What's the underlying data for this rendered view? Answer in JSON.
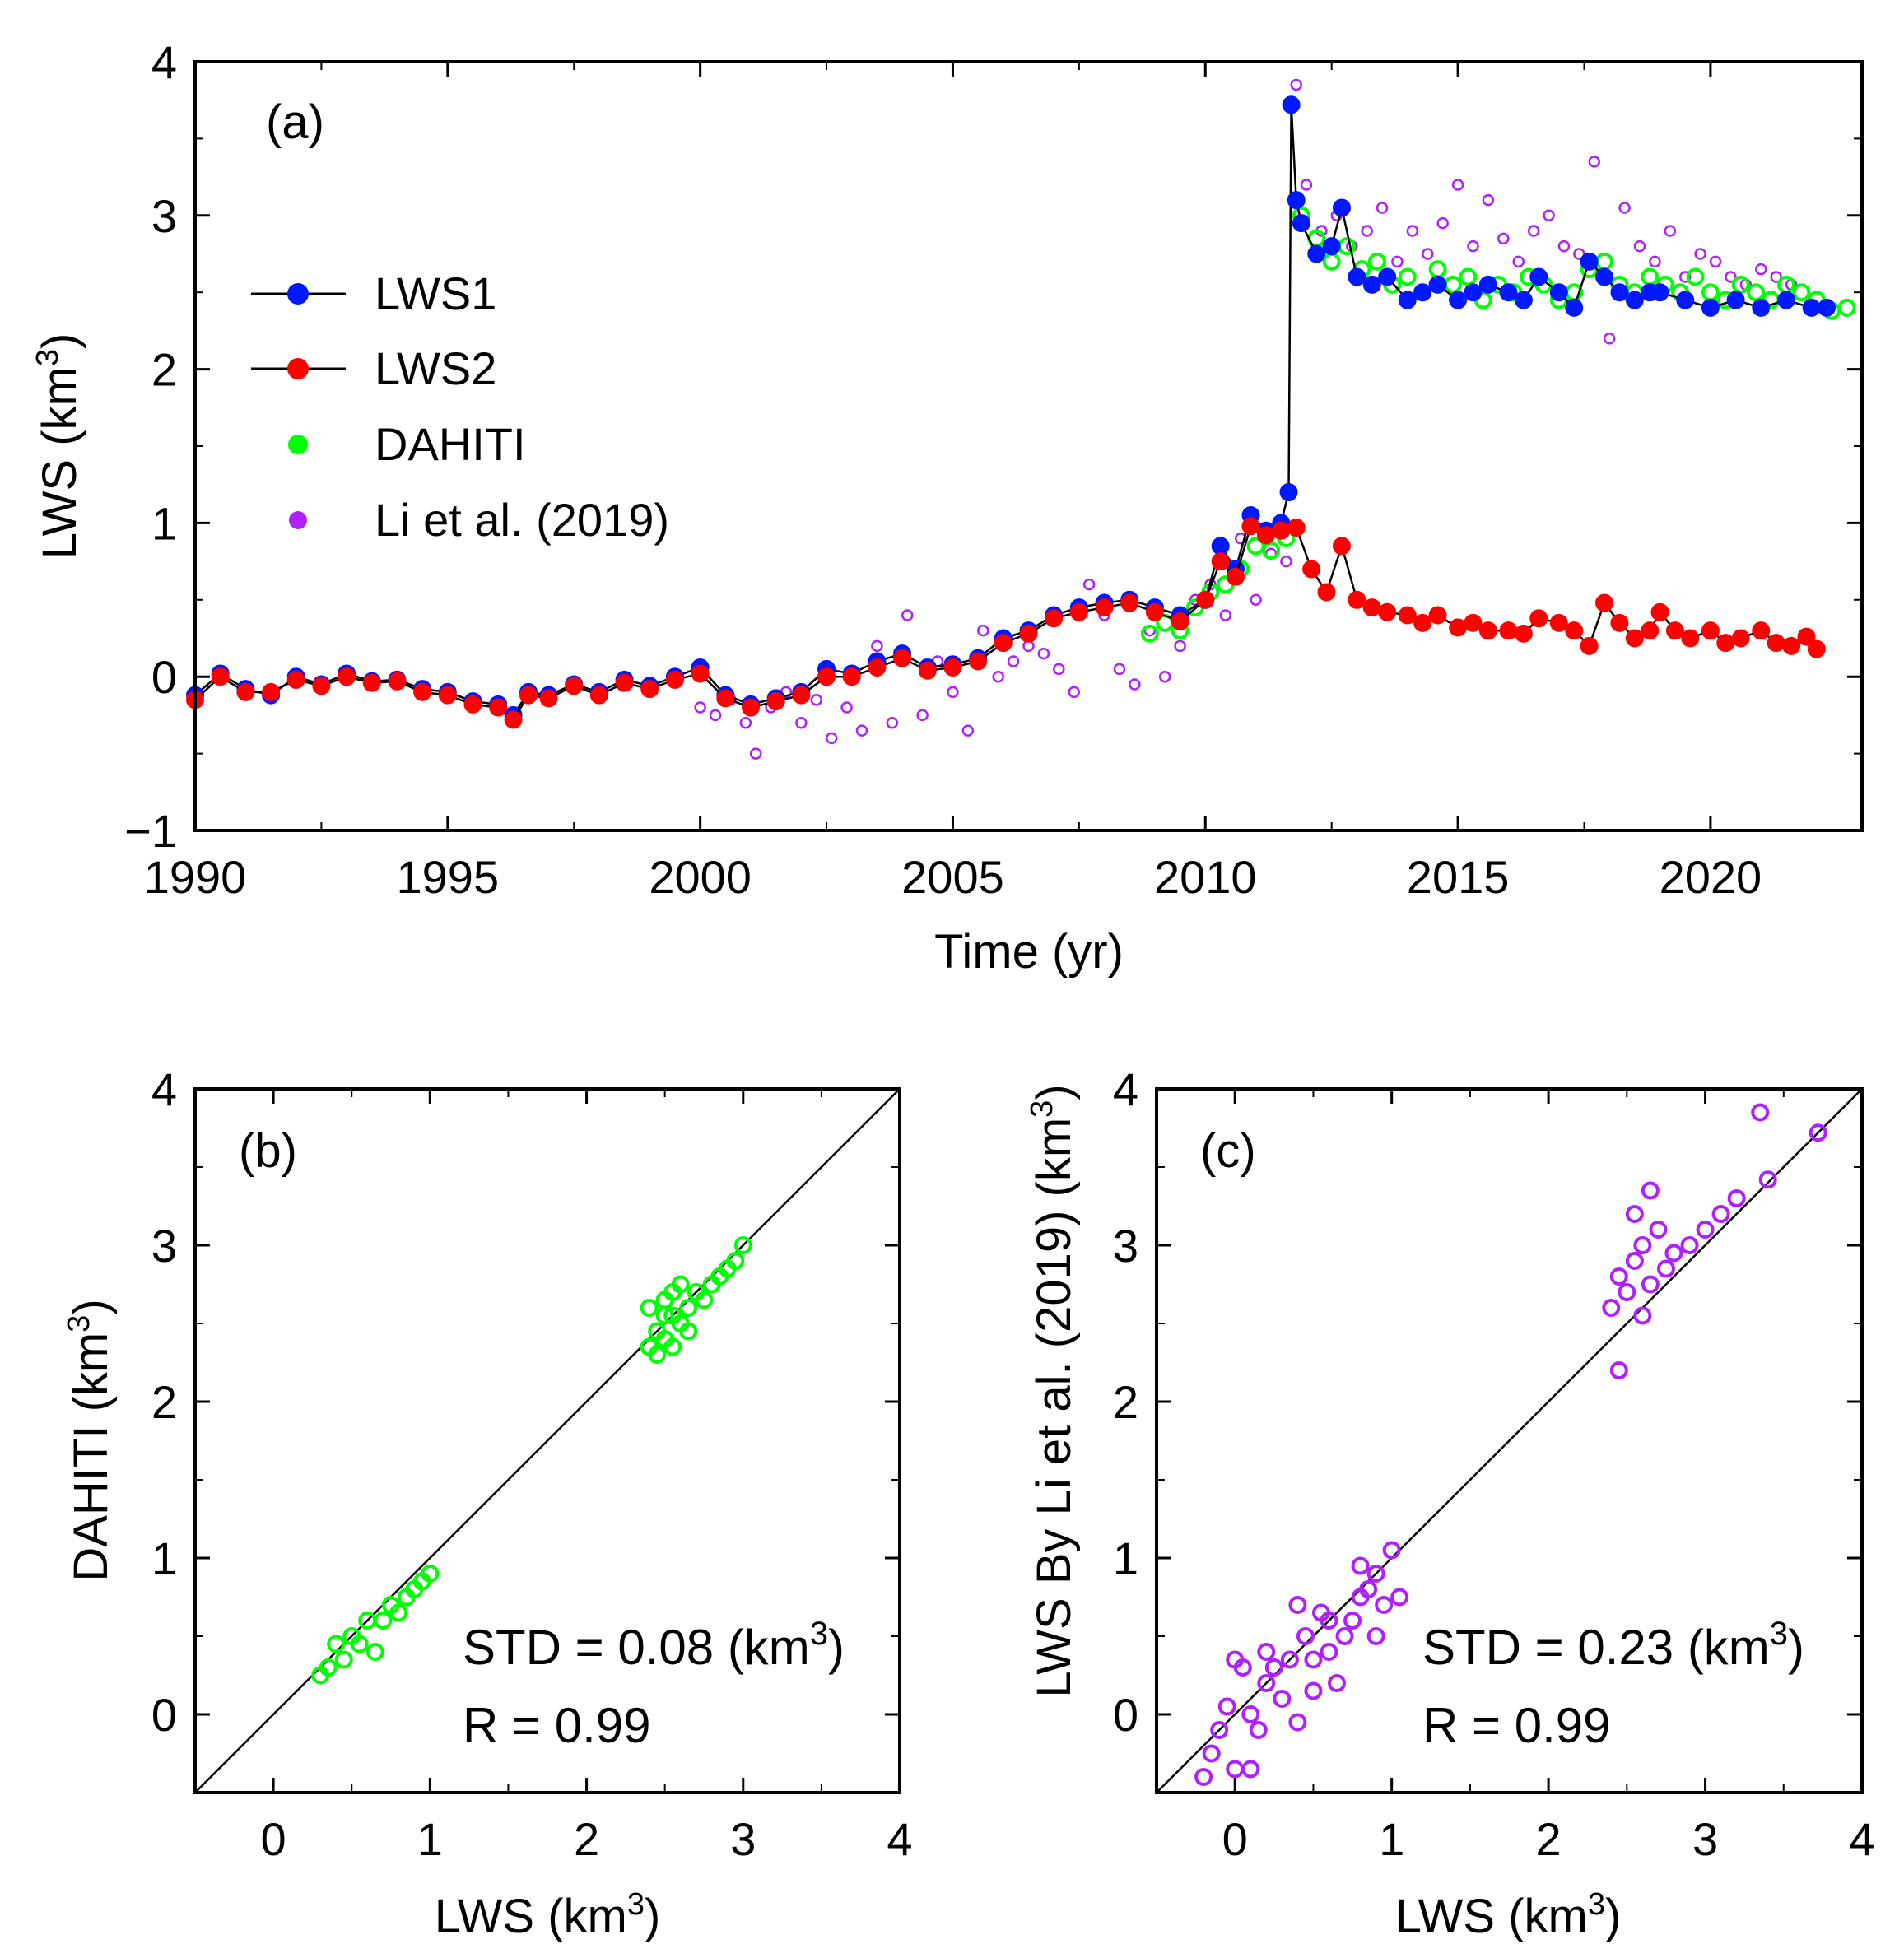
{
  "colors": {
    "lws1": "#0018ff",
    "lws2": "#ff0000",
    "dahiti": "#00ff00",
    "li": "#b020ff",
    "line": "#000000"
  },
  "panel_a": {
    "label": "(a)",
    "xlabel": "Time (yr)",
    "ylabel_main": "LWS (km",
    "ylabel_sup": "3",
    "ylabel_close": ")",
    "legend": [
      {
        "key": "lws1",
        "label": "LWS1"
      },
      {
        "key": "lws2",
        "label": "LWS2"
      },
      {
        "key": "dahiti",
        "label": "DAHITI"
      },
      {
        "key": "li",
        "label": "Li et al. (2019)"
      }
    ]
  },
  "panel_b": {
    "label": "(b)",
    "xlabel_main": "LWS (km",
    "xlabel_sup": "3",
    "xlabel_close": ")",
    "ylabel_main": "DAHITI (km",
    "ylabel_sup": "3",
    "ylabel_close": ")",
    "std_main": "STD = 0.08 (km",
    "std_sup": "3",
    "std_close": ")",
    "r_text": "R = 0.99"
  },
  "panel_c": {
    "label": "(c)",
    "xlabel_main": "LWS (km",
    "xlabel_sup": "3",
    "xlabel_close": ")",
    "ylabel_main": "LWS By Li et al. (2019) (km",
    "ylabel_sup": "3",
    "ylabel_close": ")",
    "std_main": "STD = 0.23 (km",
    "std_sup": "3",
    "std_close": ")",
    "r_text": "R = 0.99"
  },
  "chart_data": [
    {
      "type": "line",
      "panel": "a",
      "title": "",
      "xlabel": "Time (yr)",
      "ylabel": "LWS (km3)",
      "xlim": [
        1990,
        2023
      ],
      "ylim": [
        -1,
        4
      ],
      "xticks": [
        1990,
        1995,
        2000,
        2005,
        2010,
        2015,
        2020
      ],
      "yticks": [
        -1,
        0,
        1,
        2,
        3,
        4
      ],
      "ytick_labels": [
        "−1",
        "0",
        "1",
        "2",
        "3",
        "4"
      ],
      "series": [
        {
          "name": "LWS1",
          "key": "lws1",
          "style": "line+markers",
          "x": [
            1990.0,
            1990.5,
            1991.0,
            1991.5,
            1992.0,
            1992.5,
            1993.0,
            1993.5,
            1994.0,
            1994.5,
            1995.0,
            1995.5,
            1996.0,
            1996.3,
            1996.6,
            1997.0,
            1997.5,
            1998.0,
            1998.5,
            1999.0,
            1999.5,
            2000.0,
            2000.5,
            2001.0,
            2001.5,
            2002.0,
            2002.5,
            2003.0,
            2003.5,
            2004.0,
            2004.5,
            2005.0,
            2005.5,
            2006.0,
            2006.5,
            2007.0,
            2007.5,
            2008.0,
            2008.5,
            2009.0,
            2009.5,
            2010.0,
            2010.3,
            2010.6,
            2010.9,
            2011.2,
            2011.5,
            2011.65,
            2011.7,
            2011.8,
            2011.9,
            2012.2,
            2012.5,
            2012.7,
            2013.0,
            2013.3,
            2013.6,
            2014.0,
            2014.3,
            2014.6,
            2015.0,
            2015.3,
            2015.6,
            2016.0,
            2016.3,
            2016.6,
            2017.0,
            2017.3,
            2017.6,
            2017.9,
            2018.2,
            2018.5,
            2018.8,
            2019.0,
            2019.5,
            2020.0,
            2020.5,
            2021.0,
            2021.5,
            2022.0,
            2022.3
          ],
          "values": [
            -0.12,
            0.02,
            -0.08,
            -0.12,
            0.0,
            -0.05,
            0.02,
            -0.03,
            -0.02,
            -0.08,
            -0.1,
            -0.16,
            -0.18,
            -0.25,
            -0.1,
            -0.12,
            -0.05,
            -0.1,
            -0.02,
            -0.06,
            0.0,
            0.06,
            -0.12,
            -0.18,
            -0.14,
            -0.1,
            0.05,
            0.02,
            0.1,
            0.15,
            0.06,
            0.08,
            0.12,
            0.25,
            0.3,
            0.4,
            0.45,
            0.48,
            0.5,
            0.45,
            0.4,
            0.5,
            0.85,
            0.7,
            1.05,
            0.95,
            1.0,
            1.2,
            3.72,
            3.1,
            2.95,
            2.75,
            2.8,
            3.05,
            2.6,
            2.55,
            2.6,
            2.45,
            2.5,
            2.55,
            2.45,
            2.5,
            2.55,
            2.5,
            2.45,
            2.6,
            2.5,
            2.4,
            2.7,
            2.6,
            2.5,
            2.45,
            2.5,
            2.5,
            2.45,
            2.4,
            2.45,
            2.4,
            2.45,
            2.4,
            2.4
          ]
        },
        {
          "name": "LWS2",
          "key": "lws2",
          "style": "line+markers",
          "x": [
            1990.0,
            1990.5,
            1991.0,
            1991.5,
            1992.0,
            1992.5,
            1993.0,
            1993.5,
            1994.0,
            1994.5,
            1995.0,
            1995.5,
            1996.0,
            1996.3,
            1996.6,
            1997.0,
            1997.5,
            1998.0,
            1998.5,
            1999.0,
            1999.5,
            2000.0,
            2000.5,
            2001.0,
            2001.5,
            2002.0,
            2002.5,
            2003.0,
            2003.5,
            2004.0,
            2004.5,
            2005.0,
            2005.5,
            2006.0,
            2006.5,
            2007.0,
            2007.5,
            2008.0,
            2008.5,
            2009.0,
            2009.5,
            2010.0,
            2010.3,
            2010.6,
            2010.9,
            2011.2,
            2011.5,
            2011.8,
            2012.1,
            2012.4,
            2012.7,
            2013.0,
            2013.3,
            2013.6,
            2014.0,
            2014.3,
            2014.6,
            2015.0,
            2015.3,
            2015.6,
            2016.0,
            2016.3,
            2016.6,
            2017.0,
            2017.3,
            2017.6,
            2017.9,
            2018.2,
            2018.5,
            2018.8,
            2019.0,
            2019.3,
            2019.6,
            2020.0,
            2020.3,
            2020.6,
            2021.0,
            2021.3,
            2021.6,
            2021.9,
            2022.1
          ],
          "values": [
            -0.15,
            0.0,
            -0.1,
            -0.1,
            -0.02,
            -0.06,
            0.0,
            -0.04,
            -0.03,
            -0.1,
            -0.12,
            -0.18,
            -0.2,
            -0.28,
            -0.12,
            -0.14,
            -0.06,
            -0.12,
            -0.04,
            -0.08,
            -0.02,
            0.02,
            -0.14,
            -0.2,
            -0.16,
            -0.12,
            0.0,
            0.0,
            0.06,
            0.12,
            0.04,
            0.06,
            0.1,
            0.22,
            0.28,
            0.38,
            0.42,
            0.45,
            0.48,
            0.42,
            0.36,
            0.5,
            0.75,
            0.65,
            0.98,
            0.92,
            0.95,
            0.97,
            0.7,
            0.55,
            0.85,
            0.5,
            0.45,
            0.42,
            0.4,
            0.35,
            0.4,
            0.32,
            0.35,
            0.3,
            0.3,
            0.28,
            0.38,
            0.35,
            0.3,
            0.2,
            0.48,
            0.35,
            0.25,
            0.3,
            0.42,
            0.3,
            0.25,
            0.3,
            0.22,
            0.25,
            0.3,
            0.22,
            0.2,
            0.26,
            0.18
          ]
        },
        {
          "name": "DAHITI",
          "key": "dahiti",
          "style": "markers",
          "x": [
            2008.9,
            2009.2,
            2009.5,
            2009.8,
            2010.1,
            2010.4,
            2010.7,
            2011.0,
            2011.3,
            2011.6,
            2011.9,
            2012.2,
            2012.5,
            2012.8,
            2013.1,
            2013.4,
            2013.7,
            2014.0,
            2014.3,
            2014.6,
            2014.9,
            2015.2,
            2015.5,
            2015.8,
            2016.1,
            2016.4,
            2016.7,
            2017.0,
            2017.3,
            2017.6,
            2017.9,
            2018.2,
            2018.5,
            2018.8,
            2019.1,
            2019.4,
            2019.7,
            2020.0,
            2020.3,
            2020.6,
            2020.9,
            2021.2,
            2021.5,
            2021.8,
            2022.1,
            2022.4,
            2022.7
          ],
          "values": [
            0.28,
            0.35,
            0.3,
            0.45,
            0.55,
            0.6,
            0.7,
            0.85,
            0.82,
            0.9,
            3.0,
            2.85,
            2.7,
            2.8,
            2.65,
            2.7,
            2.55,
            2.6,
            2.5,
            2.65,
            2.55,
            2.6,
            2.45,
            2.55,
            2.5,
            2.6,
            2.55,
            2.45,
            2.5,
            2.65,
            2.7,
            2.55,
            2.5,
            2.6,
            2.55,
            2.5,
            2.6,
            2.5,
            2.45,
            2.55,
            2.5,
            2.45,
            2.55,
            2.5,
            2.45,
            2.38,
            2.4
          ]
        },
        {
          "name": "Li et al. (2019)",
          "key": "li",
          "style": "markers",
          "x": [
            2000.0,
            2000.3,
            2000.6,
            2000.9,
            2001.1,
            2001.4,
            2001.7,
            2002.0,
            2002.3,
            2002.6,
            2002.9,
            2003.2,
            2003.5,
            2003.8,
            2004.1,
            2004.4,
            2004.7,
            2005.0,
            2005.3,
            2005.6,
            2005.9,
            2006.2,
            2006.5,
            2006.8,
            2007.1,
            2007.4,
            2007.7,
            2008.0,
            2008.3,
            2008.6,
            2008.9,
            2009.2,
            2009.5,
            2009.8,
            2010.1,
            2010.4,
            2010.7,
            2011.0,
            2011.3,
            2011.6,
            2011.8,
            2012.0,
            2012.3,
            2012.6,
            2012.9,
            2013.2,
            2013.5,
            2013.8,
            2014.1,
            2014.4,
            2014.7,
            2015.0,
            2015.3,
            2015.6,
            2015.9,
            2016.2,
            2016.5,
            2016.8,
            2017.1,
            2017.4,
            2017.7,
            2018.0,
            2018.3,
            2018.6,
            2018.9,
            2019.2,
            2019.5,
            2019.8,
            2020.1,
            2020.4,
            2020.7,
            2021.0,
            2021.3,
            2021.6
          ],
          "values": [
            -0.2,
            -0.25,
            -0.15,
            -0.3,
            -0.5,
            -0.2,
            -0.1,
            -0.3,
            -0.15,
            -0.4,
            -0.2,
            -0.35,
            0.2,
            -0.3,
            0.4,
            -0.25,
            0.1,
            -0.1,
            -0.35,
            0.3,
            0.0,
            0.1,
            0.2,
            0.15,
            0.05,
            -0.1,
            0.6,
            0.4,
            0.05,
            -0.05,
            0.3,
            0.0,
            0.2,
            0.5,
            0.6,
            0.4,
            0.9,
            0.5,
            0.8,
            0.75,
            3.85,
            3.2,
            2.9,
            3.0,
            2.8,
            2.9,
            3.05,
            2.7,
            2.9,
            2.75,
            2.95,
            3.2,
            2.8,
            3.1,
            2.85,
            2.7,
            2.9,
            3.0,
            2.8,
            2.75,
            3.35,
            2.2,
            3.05,
            2.8,
            2.7,
            2.9,
            2.6,
            2.75,
            2.7,
            2.6,
            2.55,
            2.65,
            2.6,
            2.55
          ]
        }
      ]
    },
    {
      "type": "scatter",
      "panel": "b",
      "xlabel": "LWS (km3)",
      "ylabel": "DAHITI (km3)",
      "xlim": [
        -0.5,
        4
      ],
      "ylim": [
        -0.5,
        4
      ],
      "xticks": [
        0,
        1,
        2,
        3,
        4
      ],
      "yticks": [
        0,
        1,
        2,
        3,
        4
      ],
      "reference_line": "1:1",
      "series": [
        {
          "name": "DAHITI vs LWS",
          "key": "dahiti",
          "x": [
            0.3,
            0.35,
            0.4,
            0.45,
            0.5,
            0.55,
            0.6,
            0.65,
            0.7,
            0.75,
            0.8,
            0.85,
            0.9,
            0.95,
            1.0,
            2.4,
            2.45,
            2.5,
            2.55,
            2.6,
            2.65,
            2.7,
            2.75,
            2.8,
            2.85,
            2.9,
            2.95,
            3.0,
            2.4,
            2.45,
            2.5,
            2.55,
            2.6,
            2.65,
            2.5,
            2.55
          ],
          "values": [
            0.25,
            0.3,
            0.45,
            0.35,
            0.5,
            0.45,
            0.6,
            0.4,
            0.6,
            0.7,
            0.65,
            0.75,
            0.8,
            0.85,
            0.9,
            2.35,
            2.45,
            2.4,
            2.55,
            2.5,
            2.6,
            2.7,
            2.65,
            2.75,
            2.8,
            2.85,
            2.9,
            3.0,
            2.6,
            2.3,
            2.65,
            2.35,
            2.75,
            2.45,
            2.55,
            2.7
          ]
        }
      ]
    },
    {
      "type": "scatter",
      "panel": "c",
      "xlabel": "LWS (km3)",
      "ylabel": "LWS By Li et al. (2019) (km3)",
      "xlim": [
        -0.5,
        4
      ],
      "ylim": [
        -0.5,
        4
      ],
      "xticks": [
        0,
        1,
        2,
        3,
        4
      ],
      "yticks": [
        0,
        1,
        2,
        3,
        4
      ],
      "reference_line": "1:1",
      "series": [
        {
          "name": "Li et al. (2019) vs LWS",
          "key": "li",
          "x": [
            -0.2,
            -0.15,
            -0.1,
            -0.05,
            0.0,
            0.05,
            0.1,
            0.15,
            0.2,
            0.25,
            0.3,
            0.35,
            0.4,
            0.45,
            0.5,
            0.55,
            0.6,
            0.65,
            0.7,
            0.75,
            0.8,
            0.85,
            0.9,
            0.95,
            1.0,
            1.05,
            0.0,
            0.1,
            0.2,
            0.4,
            0.5,
            0.6,
            0.8,
            0.9,
            2.4,
            2.45,
            2.5,
            2.55,
            2.6,
            2.65,
            2.7,
            2.75,
            2.8,
            2.9,
            3.0,
            3.1,
            3.2,
            3.35,
            3.4,
            3.72,
            2.45,
            2.55,
            2.6,
            2.65
          ],
          "values": [
            -0.4,
            -0.25,
            -0.1,
            0.05,
            -0.35,
            0.3,
            0.0,
            -0.1,
            0.2,
            0.3,
            0.1,
            0.35,
            -0.05,
            0.5,
            0.35,
            0.65,
            0.4,
            0.2,
            0.5,
            0.6,
            0.75,
            0.8,
            0.9,
            0.7,
            1.05,
            0.75,
            0.35,
            -0.35,
            0.4,
            0.7,
            0.15,
            0.6,
            0.95,
            0.5,
            2.6,
            2.8,
            2.7,
            2.9,
            3.0,
            2.75,
            3.1,
            2.85,
            2.95,
            3.0,
            3.1,
            3.2,
            3.3,
            3.85,
            3.42,
            3.72,
            2.2,
            3.2,
            2.55,
            3.35
          ]
        }
      ]
    }
  ]
}
